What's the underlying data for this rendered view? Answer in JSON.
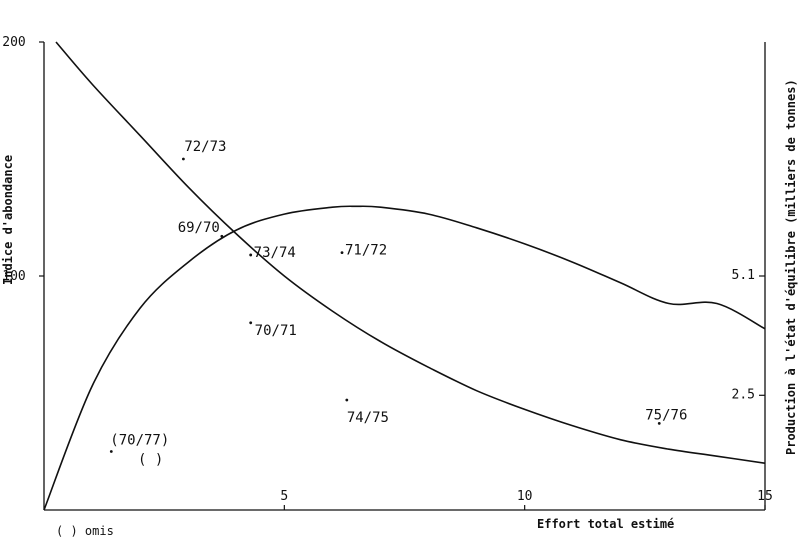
{
  "chart_data": {
    "type": "scatter",
    "title": "",
    "xlabel": "Effort total estimé",
    "ylabel_left": "Indice d'abondance",
    "ylabel_right": "Production à l'état d'équilibre (milliers de tonnes)",
    "xlim": [
      0,
      15
    ],
    "ylim_left": [
      0,
      200
    ],
    "ylim_right": [
      0,
      10.2
    ],
    "x_ticks": [
      "5",
      "10",
      "15"
    ],
    "y_left_ticks": [
      "100",
      "200"
    ],
    "y_right_ticks": [
      "2.5",
      "5.1"
    ],
    "curves": [
      {
        "axis": "left",
        "x": [
          0.25,
          1,
          2,
          3,
          4,
          5,
          6,
          7,
          8,
          9,
          10,
          11,
          12,
          13,
          14,
          15
        ],
        "y": [
          200,
          182,
          160,
          138,
          118,
          100,
          85,
          72,
          61,
          51,
          43,
          36,
          30,
          26,
          23,
          20
        ]
      },
      {
        "axis": "right",
        "x": [
          0,
          1,
          2,
          3,
          4,
          5,
          6,
          6.5,
          7,
          8,
          9,
          10,
          11,
          12,
          13,
          14,
          15
        ],
        "y": [
          0,
          2.7,
          4.4,
          5.4,
          6.1,
          6.45,
          6.6,
          6.62,
          6.6,
          6.45,
          6.15,
          5.8,
          5.4,
          4.95,
          4.5,
          4.5,
          3.95
        ]
      }
    ],
    "points": [
      {
        "label": "72/73",
        "x": 2.9,
        "y": 150
      },
      {
        "label": "69/70",
        "x": 3.7,
        "y": 117
      },
      {
        "label": "73/74",
        "x": 4.3,
        "y": 109
      },
      {
        "label": "71/72",
        "x": 6.2,
        "y": 110
      },
      {
        "label": "70/71",
        "x": 4.3,
        "y": 80
      },
      {
        "label": "74/75",
        "x": 6.3,
        "y": 47
      },
      {
        "label": "75/76",
        "x": 12.8,
        "y": 37
      },
      {
        "label": "(70/77)",
        "x": 1.4,
        "y": 25
      }
    ],
    "extra_label": "( )",
    "legend_note": "( ) omis"
  }
}
